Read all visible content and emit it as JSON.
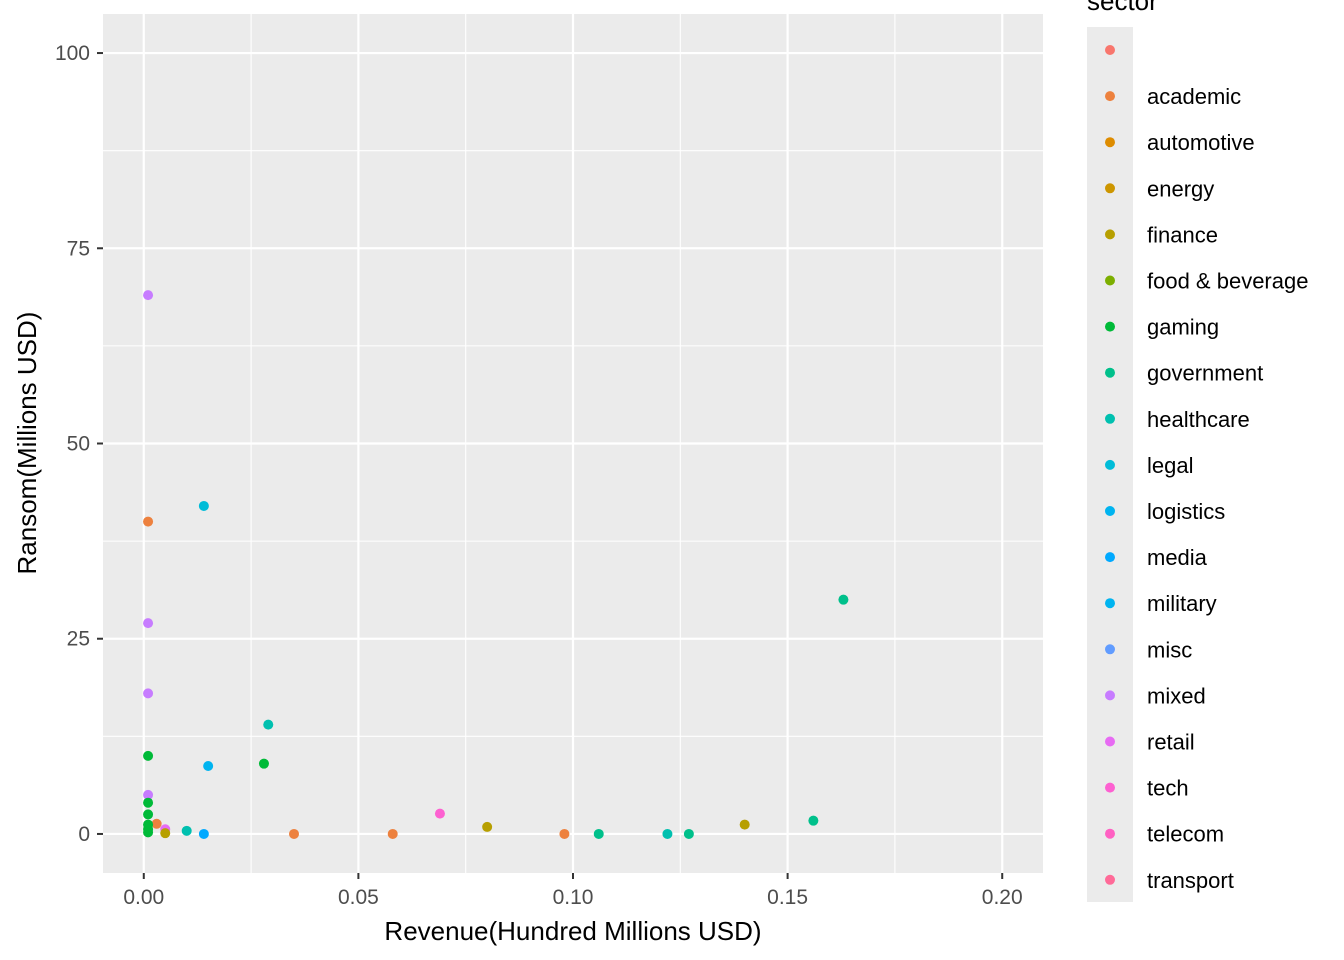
{
  "chart_data": {
    "type": "scatter",
    "title": "",
    "xlabel": "Revenue(Hundred Millions USD)",
    "ylabel": "Ransom(Millions USD)",
    "xlim": [
      -0.0095,
      0.2095
    ],
    "ylim": [
      -5,
      105
    ],
    "x_ticks": [
      {
        "value": 0.0,
        "label": "0.00"
      },
      {
        "value": 0.05,
        "label": "0.05"
      },
      {
        "value": 0.1,
        "label": "0.10"
      },
      {
        "value": 0.15,
        "label": "0.15"
      },
      {
        "value": 0.2,
        "label": "0.20"
      }
    ],
    "y_ticks": [
      {
        "value": 0,
        "label": "0"
      },
      {
        "value": 25,
        "label": "25"
      },
      {
        "value": 50,
        "label": "50"
      },
      {
        "value": 75,
        "label": "75"
      },
      {
        "value": 100,
        "label": "100"
      }
    ],
    "grid": true,
    "panel_background": "#ebebeb",
    "legend": {
      "title": "sector",
      "placement": "right",
      "entries": [
        {
          "label": "",
          "color": "#F8766D"
        },
        {
          "label": "academic",
          "color": "#ED813E"
        },
        {
          "label": "automotive",
          "color": "#DE8C00"
        },
        {
          "label": "energy",
          "color": "#CD9600"
        },
        {
          "label": "finance",
          "color": "#B79F00"
        },
        {
          "label": "food & beverage",
          "color": "#7CAE00"
        },
        {
          "label": "gaming",
          "color": "#00BA38"
        },
        {
          "label": "government",
          "color": "#00C08B"
        },
        {
          "label": "healthcare",
          "color": "#00C0AF"
        },
        {
          "label": "legal",
          "color": "#00BCD8"
        },
        {
          "label": "logistics",
          "color": "#00B4F0"
        },
        {
          "label": "media",
          "color": "#00A9FF"
        },
        {
          "label": "military",
          "color": "#00B4F0"
        },
        {
          "label": "misc",
          "color": "#619CFF"
        },
        {
          "label": "mixed",
          "color": "#C77CFF"
        },
        {
          "label": "retail",
          "color": "#E76BF3"
        },
        {
          "label": "tech",
          "color": "#FD61D1"
        },
        {
          "label": "telecom",
          "color": "#FF61C3"
        },
        {
          "label": "transport",
          "color": "#FF6A98"
        }
      ]
    },
    "series": [
      {
        "sector": "mixed",
        "color": "#C77CFF",
        "points": [
          [
            0.001,
            69
          ],
          [
            0.001,
            27
          ],
          [
            0.001,
            18
          ],
          [
            0.001,
            5
          ]
        ]
      },
      {
        "sector": "academic",
        "color": "#ED813E",
        "points": [
          [
            0.001,
            40
          ],
          [
            0.003,
            1.3
          ],
          [
            0.035,
            0
          ],
          [
            0.058,
            0
          ],
          [
            0.098,
            0
          ]
        ]
      },
      {
        "sector": "legal",
        "color": "#00BCD8",
        "points": [
          [
            0.014,
            42
          ]
        ]
      },
      {
        "sector": "gaming",
        "color": "#00BA38",
        "points": [
          [
            0.001,
            10
          ],
          [
            0.001,
            4
          ],
          [
            0.001,
            2.5
          ],
          [
            0.001,
            1.2
          ],
          [
            0.001,
            0.6
          ],
          [
            0.001,
            0.2
          ],
          [
            0.028,
            9
          ]
        ]
      },
      {
        "sector": "government",
        "color": "#00C08B",
        "points": [
          [
            0.163,
            30
          ],
          [
            0.127,
            0
          ],
          [
            0.106,
            0
          ],
          [
            0.156,
            1.7
          ]
        ]
      },
      {
        "sector": "healthcare",
        "color": "#00C0AF",
        "points": [
          [
            0.029,
            14
          ],
          [
            0.01,
            0.4
          ],
          [
            0.122,
            0
          ]
        ]
      },
      {
        "sector": "military",
        "color": "#00B4F0",
        "points": [
          [
            0.015,
            8.7
          ]
        ]
      },
      {
        "sector": "media",
        "color": "#00A9FF",
        "points": [
          [
            0.014,
            0
          ]
        ]
      },
      {
        "sector": "tech",
        "color": "#FD61D1",
        "points": [
          [
            0.069,
            2.6
          ]
        ]
      },
      {
        "sector": "retail",
        "color": "#E76BF3",
        "points": [
          [
            0.005,
            0.6
          ]
        ]
      },
      {
        "sector": "finance",
        "color": "#B79F00",
        "points": [
          [
            0.08,
            0.9
          ],
          [
            0.14,
            1.2
          ],
          [
            0.005,
            0.1
          ]
        ]
      }
    ]
  }
}
